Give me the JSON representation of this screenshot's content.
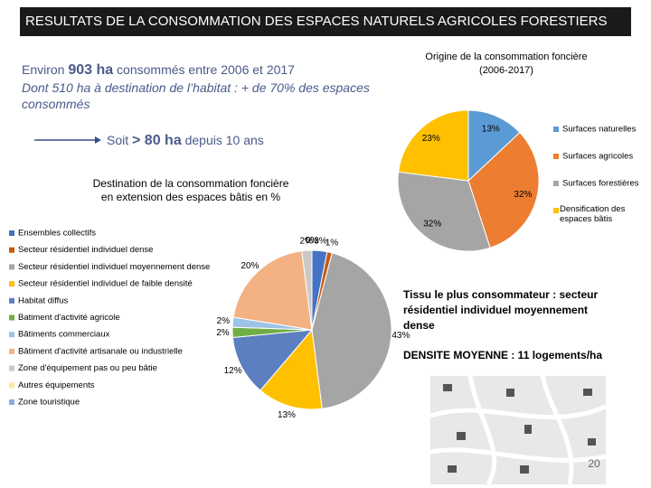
{
  "header": {
    "title": "RESULTATS DE LA CONSOMMATION DES ESPACES NATURELS AGRICOLES FORESTIERS"
  },
  "intro": {
    "line1": [
      "Environ ",
      "903 ha",
      " consommés entre 2006 et 2017"
    ],
    "line2": "Dont 510 ha à destination de l’habitat : + de 70% des espaces consommés",
    "line3": [
      "Soit ",
      "> 80 ha",
      " depuis 10 ans"
    ]
  },
  "note": {
    "tissu": "Tissu le plus consommateur : secteur résidentiel individuel moyennement dense",
    "densite": "DENSITE MOYENNE : 11 logements/ha"
  },
  "page_number": "20",
  "chart_data": [
    {
      "type": "pie",
      "title": "Origine de la consommation foncière",
      "subtitle": "(2006-2017)",
      "categories": [
        "Surfaces naturelles",
        "Surfaces agricoles",
        "Surfaces forestières",
        "Densification des espaces bâtis"
      ],
      "values": [
        13,
        32,
        32,
        23
      ],
      "value_labels": [
        "13%",
        "32%",
        "32%",
        "23%"
      ],
      "colors": [
        "#5b9bd5",
        "#ed7d31",
        "#a5a5a5",
        "#ffc000"
      ],
      "legend": "right"
    },
    {
      "type": "pie",
      "title": "Destination de la consommation foncière en extension des espaces bâtis en %",
      "categories": [
        "Ensembles collectifs",
        "Secteur résidentiel individuel dense",
        "Secteur résidentiel individuel moyennement dense",
        "Secteur résidentiel individuel de faible densité",
        "Habitat diffus",
        "Batiment d'activité agricole",
        "Bâtiments commerciaux",
        "Bâtiment d'activité artisanale ou industrielle",
        "Zone d'équipement pas ou peu bâtie",
        "Autres équipements",
        "Zone touristique"
      ],
      "values": [
        3,
        1,
        43,
        13,
        12,
        2,
        2,
        20,
        2,
        0,
        0
      ],
      "value_labels": [
        "3%",
        "1%",
        "43%",
        "13%",
        "12%",
        "2%",
        "2%",
        "20%",
        "2%",
        "0%",
        "0%"
      ],
      "colors": [
        "#4472c4",
        "#c55a11",
        "#a5a5a5",
        "#ffc000",
        "#5b7fbf",
        "#70ad47",
        "#9dc3e6",
        "#f4b183",
        "#c9c9c9",
        "#ffe699",
        "#8faadc"
      ],
      "legend": "left"
    }
  ]
}
